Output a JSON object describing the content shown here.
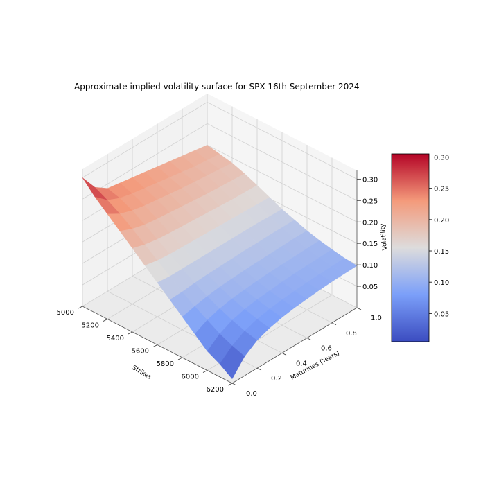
{
  "chart_data": {
    "type": "surface3d",
    "title": "Approximate implied volatility surface for SPX 16th September 2024",
    "xlabel": "Strikes",
    "ylabel": "Maturities (Years)",
    "zlabel": "Volatility",
    "xlim": [
      5000,
      6200
    ],
    "ylim": [
      0.0,
      1.0
    ],
    "zlim": [
      0.0,
      0.32
    ],
    "x_ticks": [
      5000,
      5200,
      5400,
      5600,
      5800,
      6000,
      6200
    ],
    "x_tick_labels": [
      "5000",
      "5200",
      "5400",
      "5600",
      "5800",
      "6000",
      "6200"
    ],
    "y_ticks": [
      0.0,
      0.2,
      0.4,
      0.6,
      0.8,
      1.0
    ],
    "y_tick_labels": [
      "0.0",
      "0.2",
      "0.4",
      "0.6",
      "0.8",
      "1.0"
    ],
    "z_ticks": [
      0.05,
      0.1,
      0.15,
      0.2,
      0.25,
      0.3
    ],
    "z_tick_labels": [
      "0.05",
      "0.10",
      "0.15",
      "0.20",
      "0.25",
      "0.30"
    ],
    "colormap": "coolwarm",
    "colorbar": {
      "ticks": [
        0.05,
        0.1,
        0.15,
        0.2,
        0.25,
        0.3
      ],
      "tick_labels": [
        "0.05",
        "0.10",
        "0.15",
        "0.20",
        "0.25",
        "0.30"
      ],
      "range": [
        0.005,
        0.305
      ]
    },
    "surface_strikes": [
      5000,
      5100,
      5200,
      5300,
      5400,
      5500,
      5600,
      5700,
      5800,
      5900,
      6000,
      6100,
      6200
    ],
    "surface_maturities": [
      0.0,
      0.1,
      0.2,
      0.3,
      0.4,
      0.5,
      0.6,
      0.7,
      0.8,
      0.9,
      1.0
    ],
    "surface_vol": [
      [
        0.3,
        0.26,
        0.24,
        0.235,
        0.23,
        0.225,
        0.22,
        0.215,
        0.21,
        0.205,
        0.2
      ],
      [
        0.27,
        0.245,
        0.232,
        0.225,
        0.22,
        0.215,
        0.21,
        0.205,
        0.2,
        0.197,
        0.194
      ],
      [
        0.245,
        0.228,
        0.218,
        0.212,
        0.208,
        0.204,
        0.2,
        0.197,
        0.194,
        0.191,
        0.188
      ],
      [
        0.22,
        0.208,
        0.2,
        0.196,
        0.193,
        0.19,
        0.187,
        0.184,
        0.182,
        0.18,
        0.178
      ],
      [
        0.195,
        0.186,
        0.181,
        0.178,
        0.176,
        0.174,
        0.172,
        0.17,
        0.168,
        0.167,
        0.166
      ],
      [
        0.17,
        0.164,
        0.161,
        0.16,
        0.159,
        0.158,
        0.157,
        0.156,
        0.155,
        0.154,
        0.153
      ],
      [
        0.145,
        0.142,
        0.142,
        0.142,
        0.142,
        0.142,
        0.142,
        0.142,
        0.142,
        0.141,
        0.14
      ],
      [
        0.12,
        0.121,
        0.124,
        0.126,
        0.127,
        0.128,
        0.129,
        0.129,
        0.13,
        0.13,
        0.13
      ],
      [
        0.095,
        0.102,
        0.108,
        0.112,
        0.114,
        0.116,
        0.117,
        0.118,
        0.119,
        0.12,
        0.12
      ],
      [
        0.07,
        0.085,
        0.094,
        0.1,
        0.103,
        0.106,
        0.108,
        0.109,
        0.11,
        0.111,
        0.112
      ],
      [
        0.045,
        0.068,
        0.082,
        0.09,
        0.095,
        0.098,
        0.101,
        0.103,
        0.104,
        0.105,
        0.106
      ],
      [
        0.03,
        0.055,
        0.072,
        0.082,
        0.088,
        0.092,
        0.095,
        0.097,
        0.099,
        0.1,
        0.101
      ],
      [
        0.01,
        0.045,
        0.065,
        0.076,
        0.083,
        0.088,
        0.091,
        0.094,
        0.096,
        0.097,
        0.098
      ]
    ]
  }
}
